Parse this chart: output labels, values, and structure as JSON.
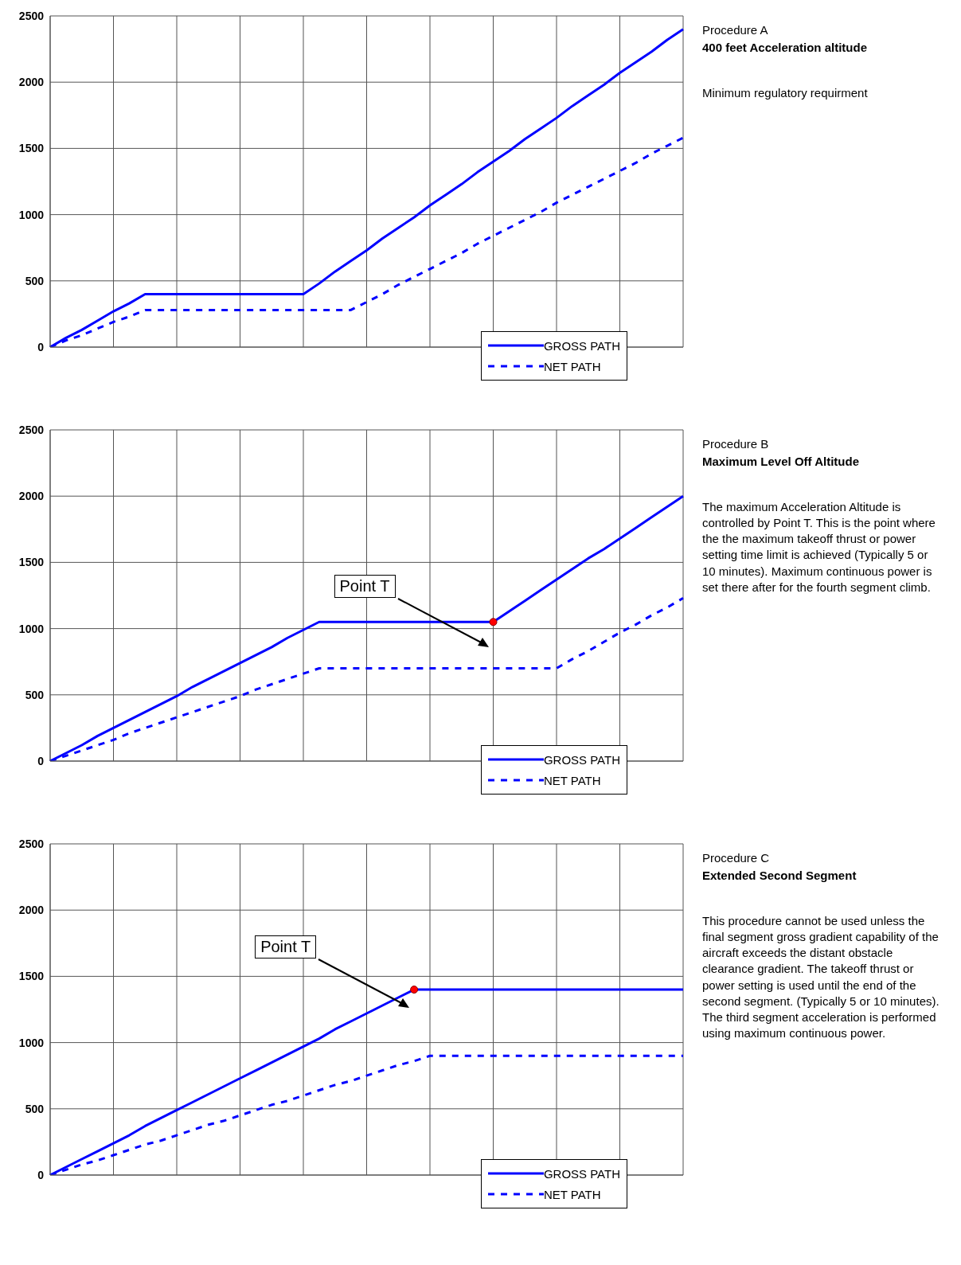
{
  "chart_data": [
    {
      "type": "line",
      "annotations": [
        "Procedure A",
        "400 feet Acceleration altitude",
        "Minimum regulatory requirment"
      ],
      "categories": [
        null,
        null,
        null,
        null,
        null,
        null,
        null,
        null,
        null,
        null,
        null,
        null,
        null,
        null,
        null,
        null,
        null,
        null,
        null,
        null,
        null,
        null,
        null,
        null,
        null,
        null,
        null,
        null,
        null,
        null,
        null,
        null,
        null,
        null,
        null,
        null,
        null,
        null,
        null,
        null,
        null
      ],
      "series": [
        {
          "name": "GROSS PATH",
          "color": "#0000ff",
          "line_style": "solid",
          "values": [
            0,
            70,
            130,
            200,
            270,
            330,
            400,
            400,
            400,
            400,
            400,
            400,
            400,
            400,
            400,
            400,
            400,
            480,
            570,
            650,
            730,
            820,
            900,
            980,
            1070,
            1150,
            1230,
            1320,
            1400,
            1480,
            1570,
            1650,
            1730,
            1820,
            1900,
            1980,
            2070,
            2150,
            2230,
            2320,
            2400
          ]
        },
        {
          "name": "NET PATH",
          "color": "#0000ff",
          "line_style": "dashed",
          "values": [
            0,
            50,
            90,
            140,
            190,
            230,
            280,
            280,
            280,
            280,
            280,
            280,
            280,
            280,
            280,
            280,
            280,
            280,
            280,
            280,
            340,
            400,
            470,
            530,
            590,
            650,
            710,
            780,
            840,
            900,
            960,
            1020,
            1090,
            1150,
            1210,
            1270,
            1330,
            1390,
            1460,
            1520,
            1580
          ]
        }
      ],
      "ylim": [
        0,
        2500
      ],
      "yticks": [
        0,
        500,
        1000,
        1500,
        2000,
        2500
      ],
      "grid": true,
      "legend": "bottom right",
      "tick_labels": "y",
      "marker": "none"
    },
    {
      "type": "line",
      "annotations": [
        "Procedure B",
        "Maximum Level Off Altitude",
        "The maximum Acceleration Altitude is controlled by Point T. This is the point where the the maximum takeoff thrust or power setting time limit is achieved (Typically 5 or 10 minutes). Maximum continuous power is set there after for the fourth segment climb.",
        "Point T"
      ],
      "categories": [
        null,
        null,
        null,
        null,
        null,
        null,
        null,
        null,
        null,
        null,
        null,
        null,
        null,
        null,
        null,
        null,
        null,
        null,
        null,
        null,
        null,
        null,
        null,
        null,
        null,
        null,
        null,
        null,
        null,
        null,
        null,
        null,
        null,
        null,
        null,
        null,
        null,
        null,
        null,
        null,
        null
      ],
      "series": [
        {
          "name": "GROSS PATH",
          "color": "#0000ff",
          "line_style": "solid",
          "values": [
            0,
            60,
            120,
            190,
            250,
            310,
            370,
            430,
            490,
            560,
            620,
            680,
            740,
            800,
            860,
            930,
            990,
            1050,
            1050,
            1050,
            1050,
            1050,
            1050,
            1050,
            1050,
            1050,
            1050,
            1050,
            1050,
            1130,
            1210,
            1290,
            1370,
            1450,
            1530,
            1600,
            1680,
            1760,
            1840,
            1920,
            2000
          ]
        },
        {
          "name": "NET PATH",
          "color": "#0000ff",
          "line_style": "dashed",
          "values": [
            0,
            40,
            80,
            120,
            160,
            210,
            250,
            290,
            330,
            370,
            410,
            450,
            490,
            540,
            580,
            620,
            660,
            700,
            700,
            700,
            700,
            700,
            700,
            700,
            700,
            700,
            700,
            700,
            700,
            700,
            700,
            700,
            700,
            770,
            830,
            900,
            970,
            1030,
            1100,
            1160,
            1230
          ]
        },
        {
          "type": "scatter",
          "color": "#ff0000",
          "marker": "circle",
          "values": [
            null,
            null,
            null,
            null,
            null,
            null,
            null,
            null,
            null,
            null,
            null,
            null,
            null,
            null,
            null,
            null,
            null,
            null,
            null,
            null,
            null,
            null,
            null,
            null,
            null,
            null,
            null,
            null,
            1050,
            null,
            null,
            null,
            null,
            null,
            null,
            null,
            null,
            null,
            null,
            null,
            null
          ]
        }
      ],
      "ylim": [
        0,
        2500
      ],
      "yticks": [
        0,
        500,
        1000,
        1500,
        2000,
        2500
      ],
      "grid": true,
      "legend": "bottom right",
      "tick_labels": "y",
      "marker": "none"
    },
    {
      "type": "line",
      "annotations": [
        "Procedure C",
        "Extended Second Segment",
        "This procedure cannot be used unless the final segment gross gradient capability of the aircraft exceeds the distant obstacle clearance gradient. The takeoff thrust or power setting is used until the end of the second segment. (Typically 5 or 10 minutes). The third segment acceleration is performed using maximum continuous power.",
        "Point T"
      ],
      "categories": [
        null,
        null,
        null,
        null,
        null,
        null,
        null,
        null,
        null,
        null,
        null,
        null,
        null,
        null,
        null,
        null,
        null,
        null,
        null,
        null,
        null,
        null,
        null,
        null,
        null,
        null,
        null,
        null,
        null,
        null,
        null,
        null,
        null,
        null,
        null,
        null,
        null,
        null,
        null,
        null,
        null
      ],
      "series": [
        {
          "name": "GROSS PATH",
          "color": "#0000ff",
          "line_style": "solid",
          "values": [
            0,
            60,
            120,
            180,
            240,
            300,
            370,
            430,
            490,
            550,
            610,
            670,
            730,
            790,
            850,
            910,
            970,
            1030,
            1100,
            1160,
            1220,
            1280,
            1340,
            1400,
            1400,
            1400,
            1400,
            1400,
            1400,
            1400,
            1400,
            1400,
            1400,
            1400,
            1400,
            1400,
            1400,
            1400,
            1400,
            1400,
            1400
          ]
        },
        {
          "name": "NET PATH",
          "color": "#0000ff",
          "line_style": "dashed",
          "values": [
            0,
            40,
            80,
            110,
            150,
            190,
            230,
            260,
            300,
            340,
            380,
            410,
            450,
            490,
            530,
            560,
            600,
            640,
            680,
            710,
            750,
            790,
            830,
            860,
            900,
            900,
            900,
            900,
            900,
            900,
            900,
            900,
            900,
            900,
            900,
            900,
            900,
            900,
            900,
            900,
            900
          ]
        },
        {
          "type": "scatter",
          "color": "#ff0000",
          "marker": "circle",
          "values": [
            null,
            null,
            null,
            null,
            null,
            null,
            null,
            null,
            null,
            null,
            null,
            null,
            null,
            null,
            null,
            null,
            null,
            null,
            null,
            null,
            null,
            null,
            null,
            1400,
            null,
            null,
            null,
            null,
            null,
            null,
            null,
            null,
            null,
            null,
            null,
            null,
            null,
            null,
            null,
            null,
            null
          ]
        }
      ],
      "ylim": [
        0,
        2500
      ],
      "yticks": [
        0,
        500,
        1000,
        1500,
        2000,
        2500
      ],
      "grid": true,
      "legend": "bottom right",
      "tick_labels": "y",
      "marker": "none"
    }
  ]
}
